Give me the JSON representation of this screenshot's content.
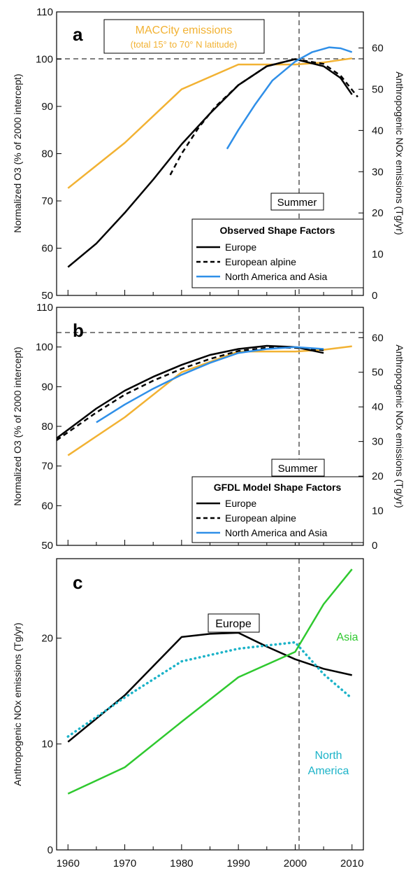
{
  "colors": {
    "europe": "#000000",
    "alpine": "#000000",
    "na_asia": "#2f8fe8",
    "maccity": "#f2b233",
    "asia_c": "#2fc92f",
    "na_c": "#1cb3c8",
    "axis": "#000000"
  },
  "chart_data": [
    {
      "panel": "a",
      "type": "line",
      "panel_label": "a",
      "xlim": [
        1958,
        2012
      ],
      "ylim": [
        50,
        110
      ],
      "yticks": [
        50,
        60,
        70,
        80,
        90,
        100,
        110
      ],
      "y2lim": [
        0,
        68.75
      ],
      "y2ticks": [
        0,
        10,
        20,
        30,
        40,
        50,
        60
      ],
      "ylabel": "Normalized O3 (% of 2000 intercept)",
      "y2label": "Anthropogenic NOx emissions (Tg/yr)",
      "reference_lines": {
        "y": 100,
        "x": 2000
      },
      "annotation_box": [
        "MACCity emissions",
        "(total 15° to 70° N latitude)"
      ],
      "season_label": "Summer",
      "legend_title": "Observed Shape Factors",
      "series": [
        {
          "name": "Europe",
          "style": "solid",
          "color_key": "europe",
          "axis": "left",
          "x": [
            1960,
            1965,
            1970,
            1975,
            1980,
            1985,
            1990,
            1995,
            2000,
            2005,
            2008,
            2010
          ],
          "y": [
            56,
            61,
            67.5,
            74.5,
            82,
            88.5,
            94.5,
            98.5,
            100,
            98.5,
            96,
            92.5
          ]
        },
        {
          "name": "European alpine",
          "style": "dashed",
          "color_key": "alpine",
          "axis": "left",
          "x": [
            1978,
            1980,
            1983,
            1986,
            1990,
            1995,
            2000,
            2005,
            2008,
            2011
          ],
          "y": [
            75.5,
            80,
            85.5,
            90,
            94.5,
            98.5,
            100,
            99,
            96.5,
            92
          ]
        },
        {
          "name": "North America and Asia",
          "style": "solid",
          "color_key": "na_asia",
          "axis": "left",
          "x": [
            1988,
            1990,
            1993,
            1996,
            2000,
            2003,
            2006,
            2008,
            2010
          ],
          "y": [
            81,
            85,
            90.5,
            95.5,
            99.5,
            101.5,
            102.5,
            102.3,
            101.5
          ]
        },
        {
          "name": "MACCity",
          "style": "solid",
          "color_key": "maccity",
          "axis": "right",
          "x": [
            1960,
            1970,
            1980,
            1990,
            2000,
            2005,
            2010
          ],
          "y": [
            26,
            37,
            50,
            56,
            56,
            56.5,
            57.5
          ]
        }
      ]
    },
    {
      "panel": "b",
      "type": "line",
      "panel_label": "b",
      "xlim": [
        1958,
        2012
      ],
      "ylim": [
        50,
        110
      ],
      "yticks": [
        50,
        60,
        70,
        80,
        90,
        100,
        110
      ],
      "y2lim": [
        0,
        68.75
      ],
      "y2ticks": [
        0,
        10,
        20,
        30,
        40,
        50,
        60
      ],
      "ylabel": "Normalized O3 (% of 2000 intercept)",
      "y2label": "Anthropogenic NOx emissions (Tg/yr)",
      "reference_lines": {
        "y": 100,
        "x": 2000
      },
      "season_label": "Summer",
      "legend_title": "GFDL Model Shape Factors",
      "series": [
        {
          "name": "Europe",
          "style": "solid",
          "color_key": "europe",
          "axis": "left",
          "x": [
            1958,
            1965,
            1970,
            1975,
            1980,
            1985,
            1990,
            1995,
            2000,
            2005
          ],
          "y": [
            77,
            84.5,
            89,
            92.5,
            95.5,
            98,
            99.5,
            100.3,
            100,
            98.5
          ]
        },
        {
          "name": "European alpine",
          "style": "dashed",
          "color_key": "alpine",
          "axis": "left",
          "x": [
            1958,
            1965,
            1970,
            1975,
            1980,
            1985,
            1990,
            1995,
            2000,
            2005
          ],
          "y": [
            76.5,
            83.5,
            88,
            91.5,
            94.5,
            97,
            99,
            99.8,
            99.8,
            99.2
          ]
        },
        {
          "name": "North America and Asia",
          "style": "solid",
          "color_key": "na_asia",
          "axis": "left",
          "x": [
            1965,
            1970,
            1975,
            1980,
            1985,
            1990,
            1995,
            2000,
            2005
          ],
          "y": [
            81,
            85.5,
            89.5,
            93,
            96,
            98.5,
            99.5,
            100,
            99.5
          ]
        },
        {
          "name": "MACCity",
          "style": "solid",
          "color_key": "maccity",
          "axis": "right",
          "x": [
            1960,
            1970,
            1980,
            1990,
            2000,
            2005,
            2010
          ],
          "y": [
            26,
            37,
            50,
            56,
            56,
            56.5,
            57.5
          ]
        }
      ]
    },
    {
      "panel": "c",
      "type": "line",
      "panel_label": "c",
      "xlim": [
        1958,
        2012
      ],
      "xticks": [
        1960,
        1970,
        1980,
        1990,
        2000,
        2010
      ],
      "ylim": [
        0,
        27.5
      ],
      "yticks": [
        0,
        10,
        20
      ],
      "ylabel": "Anthropogenic NOx emissions (Tg/yr)",
      "reference_lines": {
        "x": 2000
      },
      "series": [
        {
          "name": "Europe",
          "style": "solid",
          "color_key": "europe",
          "x": [
            1960,
            1970,
            1980,
            1985,
            1990,
            1995,
            2000,
            2005,
            2010
          ],
          "y": [
            10.2,
            14.6,
            20.1,
            20.4,
            20.5,
            19.2,
            18,
            17.1,
            16.5
          ]
        },
        {
          "name": "North America",
          "style": "dotted",
          "color_key": "na_c",
          "x": [
            1960,
            1970,
            1980,
            1990,
            1995,
            2000,
            2005,
            2010
          ],
          "y": [
            10.7,
            14.4,
            17.8,
            19,
            19.3,
            19.6,
            16.6,
            14.3
          ]
        },
        {
          "name": "Asia",
          "style": "solid",
          "color_key": "asia_c",
          "x": [
            1960,
            1970,
            1980,
            1990,
            2000,
            2005,
            2010
          ],
          "y": [
            5.3,
            7.8,
            12.1,
            16.3,
            18.7,
            23.2,
            26.5
          ]
        }
      ],
      "labels": {
        "europe": "Europe",
        "asia": "Asia",
        "north": "North",
        "america": "America"
      }
    }
  ]
}
